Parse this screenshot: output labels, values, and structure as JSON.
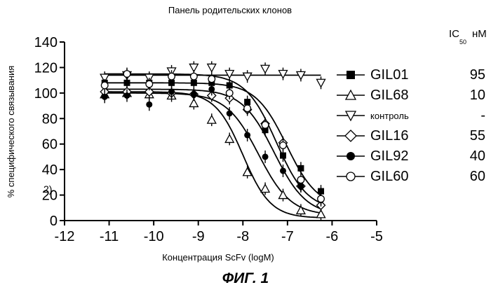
{
  "chart_data": {
    "type": "line",
    "title": "Панель родительских клонов",
    "xlabel": "Концентрация ScFv (logM)",
    "ylabel": "% специфического связывания",
    "xlim": [
      -12,
      -5
    ],
    "ylim": [
      0,
      140
    ],
    "xticks": [
      -12,
      -11,
      -10,
      -9,
      -8,
      -7,
      -6,
      -5
    ],
    "yticks": [
      0,
      20,
      40,
      60,
      80,
      100,
      120,
      140
    ],
    "x_tick_labels": [
      "-12",
      "-11",
      "-10",
      "-9",
      "-8",
      "-7",
      "-6",
      "-5"
    ],
    "y_tick_labels": [
      "0",
      "20",
      "40",
      "60",
      "80",
      "100",
      "120",
      "140"
    ],
    "x": [
      -11.1,
      -10.6,
      -10.1,
      -9.6,
      -9.1,
      -8.7,
      -8.3,
      -7.9,
      -7.5,
      -7.1,
      -6.7,
      -6.25
    ],
    "legend_header": {
      "ic": "IC",
      "sub": "50",
      "unit": "нМ"
    },
    "stray_label": "2)",
    "series": [
      {
        "name": "GIL01",
        "ic50": "95",
        "marker": "square-filled",
        "top": 108,
        "bottom": 10,
        "logIC50": -7.02,
        "hill": 1.25,
        "values": [
          108,
          108,
          108,
          108,
          108,
          108,
          106,
          93,
          71,
          51,
          41,
          23
        ]
      },
      {
        "name": "GIL68",
        "ic50": "10",
        "marker": "triangle-up-open",
        "top": 101,
        "bottom": 2,
        "logIC50": -8.0,
        "hill": 1.4,
        "values": [
          99,
          100,
          99,
          98,
          92,
          79,
          64,
          38,
          25,
          20,
          8,
          5
        ]
      },
      {
        "name": "контроль",
        "ic50": "-",
        "marker": "triangle-down-open",
        "top": 114,
        "bottom": 114,
        "logIC50": -7.0,
        "hill": 1.0,
        "values": [
          112,
          114,
          112,
          117,
          120,
          120,
          115,
          113,
          119,
          115,
          114,
          108
        ]
      },
      {
        "name": "GIL16",
        "ic50": "55",
        "marker": "diamond-open",
        "top": 103,
        "bottom": 4,
        "logIC50": -7.3,
        "hill": 1.2,
        "values": [
          101,
          101,
          101,
          100,
          99,
          98,
          96,
          87,
          76,
          61,
          27,
          12
        ]
      },
      {
        "name": "GIL92",
        "ic50": "40",
        "marker": "circle-filled",
        "top": 100,
        "bottom": 4,
        "logIC50": -7.65,
        "hill": 1.2,
        "values": [
          97,
          98,
          91,
          101,
          99,
          103,
          84,
          67,
          50,
          39,
          27,
          16
        ]
      },
      {
        "name": "GIL60",
        "ic50": "60",
        "marker": "circle-open",
        "top": 115,
        "bottom": 8,
        "logIC50": -7.25,
        "hill": 1.25,
        "values": [
          106,
          115,
          107,
          113,
          113,
          111,
          100,
          88,
          75,
          59,
          32,
          17
        ]
      }
    ]
  },
  "caption": "ФИГ. 1"
}
